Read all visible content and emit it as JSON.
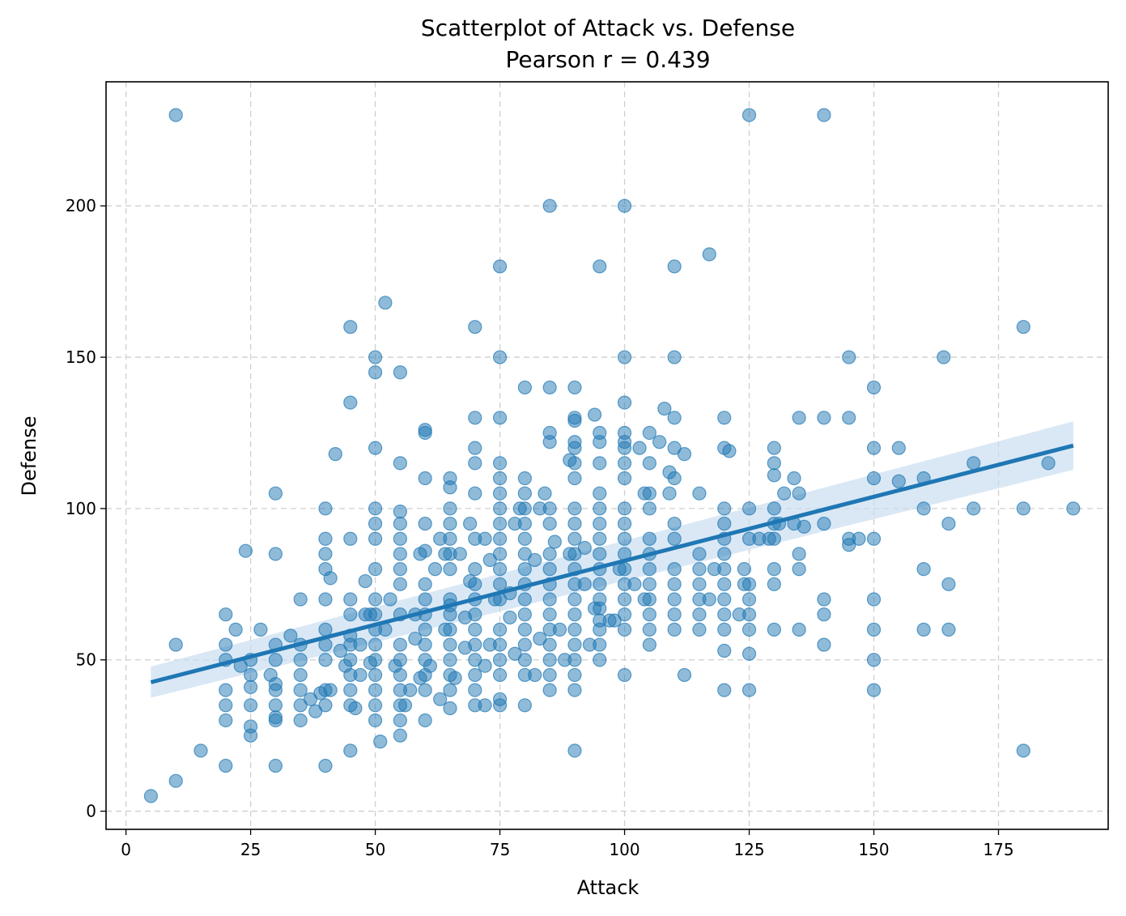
{
  "chart_data": {
    "type": "scatter",
    "title": "Scatterplot of Attack vs. Defense",
    "subtitle": "Pearson r = 0.439",
    "xlabel": "Attack",
    "ylabel": "Defense",
    "xlim": [
      -4,
      197
    ],
    "ylim": [
      -6,
      241
    ],
    "xticks": [
      0,
      25,
      50,
      75,
      100,
      125,
      150,
      175
    ],
    "yticks": [
      0,
      50,
      100,
      150,
      200
    ],
    "grid": true,
    "colors": {
      "point": "#1f77b4",
      "line": "#1f77b4",
      "band": "#c6dbef"
    },
    "regression": {
      "x": [
        5,
        190
      ],
      "y": [
        42.6,
        120.8
      ],
      "ci_low": [
        37.5,
        112.8
      ],
      "ci_high": [
        47.8,
        128.8
      ]
    },
    "points": [
      [
        5,
        5
      ],
      [
        10,
        10
      ],
      [
        10,
        230
      ],
      [
        10,
        55
      ],
      [
        15,
        20
      ],
      [
        20,
        15
      ],
      [
        20,
        30
      ],
      [
        20,
        35
      ],
      [
        20,
        40
      ],
      [
        20,
        50
      ],
      [
        20,
        55
      ],
      [
        20,
        65
      ],
      [
        22,
        60
      ],
      [
        23,
        48
      ],
      [
        24,
        86
      ],
      [
        25,
        25
      ],
      [
        25,
        28
      ],
      [
        25,
        35
      ],
      [
        25,
        41
      ],
      [
        25,
        45
      ],
      [
        25,
        50
      ],
      [
        27,
        60
      ],
      [
        29,
        45
      ],
      [
        30,
        15
      ],
      [
        30,
        30
      ],
      [
        30,
        31
      ],
      [
        30,
        35
      ],
      [
        30,
        40
      ],
      [
        30,
        42
      ],
      [
        30,
        50
      ],
      [
        30,
        55
      ],
      [
        30,
        85
      ],
      [
        30,
        105
      ],
      [
        33,
        58
      ],
      [
        35,
        30
      ],
      [
        35,
        35
      ],
      [
        35,
        40
      ],
      [
        35,
        45
      ],
      [
        35,
        50
      ],
      [
        35,
        55
      ],
      [
        35,
        70
      ],
      [
        37,
        37
      ],
      [
        38,
        33
      ],
      [
        39,
        39
      ],
      [
        40,
        15
      ],
      [
        40,
        35
      ],
      [
        40,
        40
      ],
      [
        40,
        50
      ],
      [
        40,
        55
      ],
      [
        40,
        60
      ],
      [
        40,
        70
      ],
      [
        40,
        80
      ],
      [
        40,
        85
      ],
      [
        40,
        90
      ],
      [
        40,
        100
      ],
      [
        41,
        40
      ],
      [
        41,
        77
      ],
      [
        42,
        118
      ],
      [
        43,
        53
      ],
      [
        44,
        48
      ],
      [
        45,
        20
      ],
      [
        45,
        35
      ],
      [
        45,
        40
      ],
      [
        45,
        45
      ],
      [
        45,
        50
      ],
      [
        45,
        55
      ],
      [
        45,
        58
      ],
      [
        45,
        65
      ],
      [
        45,
        70
      ],
      [
        45,
        90
      ],
      [
        45,
        135
      ],
      [
        45,
        160
      ],
      [
        46,
        34
      ],
      [
        47,
        45
      ],
      [
        47,
        55
      ],
      [
        48,
        65
      ],
      [
        48,
        76
      ],
      [
        49,
        49
      ],
      [
        49,
        65
      ],
      [
        50,
        30
      ],
      [
        50,
        35
      ],
      [
        50,
        40
      ],
      [
        50,
        45
      ],
      [
        50,
        50
      ],
      [
        50,
        55
      ],
      [
        50,
        60
      ],
      [
        50,
        65
      ],
      [
        50,
        70
      ],
      [
        50,
        80
      ],
      [
        50,
        90
      ],
      [
        50,
        95
      ],
      [
        50,
        100
      ],
      [
        50,
        120
      ],
      [
        50,
        145
      ],
      [
        50,
        150
      ],
      [
        51,
        23
      ],
      [
        52,
        168
      ],
      [
        52,
        60
      ],
      [
        53,
        70
      ],
      [
        54,
        48
      ],
      [
        55,
        25
      ],
      [
        55,
        30
      ],
      [
        55,
        35
      ],
      [
        55,
        40
      ],
      [
        55,
        45
      ],
      [
        55,
        50
      ],
      [
        55,
        55
      ],
      [
        55,
        65
      ],
      [
        55,
        75
      ],
      [
        55,
        80
      ],
      [
        55,
        85
      ],
      [
        55,
        90
      ],
      [
        55,
        95
      ],
      [
        55,
        99
      ],
      [
        55,
        115
      ],
      [
        55,
        145
      ],
      [
        56,
        35
      ],
      [
        57,
        40
      ],
      [
        58,
        57
      ],
      [
        58,
        65
      ],
      [
        59,
        85
      ],
      [
        59,
        44
      ],
      [
        60,
        30
      ],
      [
        60,
        40
      ],
      [
        60,
        45
      ],
      [
        60,
        50
      ],
      [
        60,
        55
      ],
      [
        60,
        60
      ],
      [
        60,
        65
      ],
      [
        60,
        70
      ],
      [
        60,
        75
      ],
      [
        60,
        86
      ],
      [
        60,
        95
      ],
      [
        60,
        110
      ],
      [
        60,
        125
      ],
      [
        60,
        126
      ],
      [
        61,
        48
      ],
      [
        62,
        80
      ],
      [
        63,
        37
      ],
      [
        63,
        90
      ],
      [
        64,
        60
      ],
      [
        64,
        85
      ],
      [
        65,
        34
      ],
      [
        65,
        40
      ],
      [
        65,
        45
      ],
      [
        65,
        50
      ],
      [
        65,
        55
      ],
      [
        65,
        60
      ],
      [
        65,
        65
      ],
      [
        65,
        68
      ],
      [
        65,
        70
      ],
      [
        65,
        80
      ],
      [
        65,
        85
      ],
      [
        65,
        90
      ],
      [
        65,
        95
      ],
      [
        65,
        100
      ],
      [
        65,
        107
      ],
      [
        65,
        110
      ],
      [
        66,
        44
      ],
      [
        67,
        85
      ],
      [
        68,
        64
      ],
      [
        68,
        54
      ],
      [
        69,
        95
      ],
      [
        69,
        76
      ],
      [
        70,
        35
      ],
      [
        70,
        40
      ],
      [
        70,
        45
      ],
      [
        70,
        50
      ],
      [
        70,
        55
      ],
      [
        70,
        60
      ],
      [
        70,
        65
      ],
      [
        70,
        70
      ],
      [
        70,
        75
      ],
      [
        70,
        80
      ],
      [
        70,
        90
      ],
      [
        70,
        105
      ],
      [
        70,
        115
      ],
      [
        70,
        120
      ],
      [
        70,
        130
      ],
      [
        70,
        160
      ],
      [
        72,
        35
      ],
      [
        72,
        48
      ],
      [
        72,
        90
      ],
      [
        73,
        55
      ],
      [
        73,
        83
      ],
      [
        74,
        70
      ],
      [
        75,
        35
      ],
      [
        75,
        37
      ],
      [
        75,
        45
      ],
      [
        75,
        50
      ],
      [
        75,
        55
      ],
      [
        75,
        60
      ],
      [
        75,
        70
      ],
      [
        75,
        75
      ],
      [
        75,
        80
      ],
      [
        75,
        85
      ],
      [
        75,
        90
      ],
      [
        75,
        95
      ],
      [
        75,
        100
      ],
      [
        75,
        105
      ],
      [
        75,
        110
      ],
      [
        75,
        115
      ],
      [
        75,
        130
      ],
      [
        75,
        150
      ],
      [
        75,
        180
      ],
      [
        77,
        64
      ],
      [
        77,
        72
      ],
      [
        78,
        52
      ],
      [
        78,
        95
      ],
      [
        79,
        100
      ],
      [
        80,
        35
      ],
      [
        80,
        45
      ],
      [
        80,
        50
      ],
      [
        80,
        55
      ],
      [
        80,
        60
      ],
      [
        80,
        65
      ],
      [
        80,
        70
      ],
      [
        80,
        75
      ],
      [
        80,
        80
      ],
      [
        80,
        85
      ],
      [
        80,
        90
      ],
      [
        80,
        95
      ],
      [
        80,
        100
      ],
      [
        80,
        105
      ],
      [
        80,
        110
      ],
      [
        80,
        140
      ],
      [
        82,
        45
      ],
      [
        82,
        83
      ],
      [
        83,
        57
      ],
      [
        83,
        100
      ],
      [
        84,
        105
      ],
      [
        85,
        40
      ],
      [
        85,
        45
      ],
      [
        85,
        50
      ],
      [
        85,
        55
      ],
      [
        85,
        60
      ],
      [
        85,
        65
      ],
      [
        85,
        70
      ],
      [
        85,
        75
      ],
      [
        85,
        80
      ],
      [
        85,
        85
      ],
      [
        85,
        95
      ],
      [
        85,
        100
      ],
      [
        85,
        122
      ],
      [
        85,
        125
      ],
      [
        85,
        140
      ],
      [
        85,
        200
      ],
      [
        86,
        89
      ],
      [
        87,
        60
      ],
      [
        88,
        50
      ],
      [
        89,
        116
      ],
      [
        89,
        85
      ],
      [
        90,
        20
      ],
      [
        90,
        40
      ],
      [
        90,
        45
      ],
      [
        90,
        50
      ],
      [
        90,
        55
      ],
      [
        90,
        60
      ],
      [
        90,
        65
      ],
      [
        90,
        70
      ],
      [
        90,
        75
      ],
      [
        90,
        80
      ],
      [
        90,
        85
      ],
      [
        90,
        90
      ],
      [
        90,
        95
      ],
      [
        90,
        100
      ],
      [
        90,
        110
      ],
      [
        90,
        115
      ],
      [
        90,
        120
      ],
      [
        90,
        122
      ],
      [
        90,
        129
      ],
      [
        90,
        130
      ],
      [
        90,
        140
      ],
      [
        92,
        75
      ],
      [
        92,
        87
      ],
      [
        93,
        55
      ],
      [
        94,
        131
      ],
      [
        94,
        67
      ],
      [
        95,
        50
      ],
      [
        95,
        55
      ],
      [
        95,
        60
      ],
      [
        95,
        63
      ],
      [
        95,
        67
      ],
      [
        95,
        70
      ],
      [
        95,
        75
      ],
      [
        95,
        80
      ],
      [
        95,
        85
      ],
      [
        95,
        90
      ],
      [
        95,
        95
      ],
      [
        95,
        100
      ],
      [
        95,
        105
      ],
      [
        95,
        115
      ],
      [
        95,
        122
      ],
      [
        95,
        125
      ],
      [
        95,
        180
      ],
      [
        97,
        63
      ],
      [
        98,
        63
      ],
      [
        99,
        80
      ],
      [
        100,
        45
      ],
      [
        100,
        60
      ],
      [
        100,
        65
      ],
      [
        100,
        70
      ],
      [
        100,
        75
      ],
      [
        100,
        80
      ],
      [
        100,
        85
      ],
      [
        100,
        90
      ],
      [
        100,
        95
      ],
      [
        100,
        100
      ],
      [
        100,
        110
      ],
      [
        100,
        115
      ],
      [
        100,
        120
      ],
      [
        100,
        122
      ],
      [
        100,
        125
      ],
      [
        100,
        135
      ],
      [
        100,
        150
      ],
      [
        100,
        200
      ],
      [
        102,
        75
      ],
      [
        103,
        120
      ],
      [
        104,
        70
      ],
      [
        104,
        105
      ],
      [
        105,
        55
      ],
      [
        105,
        60
      ],
      [
        105,
        65
      ],
      [
        105,
        70
      ],
      [
        105,
        75
      ],
      [
        105,
        80
      ],
      [
        105,
        85
      ],
      [
        105,
        90
      ],
      [
        105,
        100
      ],
      [
        105,
        105
      ],
      [
        105,
        115
      ],
      [
        105,
        125
      ],
      [
        107,
        122
      ],
      [
        108,
        133
      ],
      [
        109,
        112
      ],
      [
        109,
        105
      ],
      [
        110,
        60
      ],
      [
        110,
        65
      ],
      [
        110,
        70
      ],
      [
        110,
        75
      ],
      [
        110,
        80
      ],
      [
        110,
        90
      ],
      [
        110,
        95
      ],
      [
        110,
        110
      ],
      [
        110,
        120
      ],
      [
        110,
        130
      ],
      [
        110,
        150
      ],
      [
        110,
        180
      ],
      [
        112,
        45
      ],
      [
        112,
        118
      ],
      [
        115,
        60
      ],
      [
        115,
        65
      ],
      [
        115,
        70
      ],
      [
        115,
        75
      ],
      [
        115,
        80
      ],
      [
        115,
        85
      ],
      [
        115,
        105
      ],
      [
        117,
        70
      ],
      [
        117,
        184
      ],
      [
        118,
        80
      ],
      [
        120,
        40
      ],
      [
        120,
        53
      ],
      [
        120,
        60
      ],
      [
        120,
        65
      ],
      [
        120,
        70
      ],
      [
        120,
        75
      ],
      [
        120,
        80
      ],
      [
        120,
        85
      ],
      [
        120,
        90
      ],
      [
        120,
        95
      ],
      [
        120,
        100
      ],
      [
        120,
        120
      ],
      [
        120,
        130
      ],
      [
        121,
        119
      ],
      [
        123,
        65
      ],
      [
        124,
        75
      ],
      [
        124,
        80
      ],
      [
        125,
        40
      ],
      [
        125,
        52
      ],
      [
        125,
        60
      ],
      [
        125,
        65
      ],
      [
        125,
        70
      ],
      [
        125,
        75
      ],
      [
        125,
        90
      ],
      [
        125,
        100
      ],
      [
        125,
        230
      ],
      [
        127,
        90
      ],
      [
        129,
        90
      ],
      [
        130,
        60
      ],
      [
        130,
        75
      ],
      [
        130,
        80
      ],
      [
        130,
        90
      ],
      [
        130,
        95
      ],
      [
        130,
        100
      ],
      [
        130,
        111
      ],
      [
        130,
        115
      ],
      [
        130,
        120
      ],
      [
        131,
        95
      ],
      [
        132,
        105
      ],
      [
        134,
        95
      ],
      [
        134,
        110
      ],
      [
        135,
        60
      ],
      [
        135,
        80
      ],
      [
        135,
        85
      ],
      [
        135,
        105
      ],
      [
        135,
        130
      ],
      [
        136,
        94
      ],
      [
        140,
        55
      ],
      [
        140,
        65
      ],
      [
        140,
        70
      ],
      [
        140,
        95
      ],
      [
        140,
        130
      ],
      [
        140,
        230
      ],
      [
        145,
        88
      ],
      [
        145,
        90
      ],
      [
        145,
        130
      ],
      [
        145,
        150
      ],
      [
        147,
        90
      ],
      [
        150,
        40
      ],
      [
        150,
        50
      ],
      [
        150,
        60
      ],
      [
        150,
        70
      ],
      [
        150,
        90
      ],
      [
        150,
        110
      ],
      [
        150,
        120
      ],
      [
        150,
        140
      ],
      [
        155,
        109
      ],
      [
        155,
        120
      ],
      [
        160,
        60
      ],
      [
        160,
        80
      ],
      [
        160,
        100
      ],
      [
        160,
        110
      ],
      [
        164,
        150
      ],
      [
        165,
        60
      ],
      [
        165,
        75
      ],
      [
        165,
        95
      ],
      [
        170,
        100
      ],
      [
        170,
        115
      ],
      [
        180,
        20
      ],
      [
        180,
        100
      ],
      [
        180,
        160
      ],
      [
        185,
        115
      ],
      [
        190,
        100
      ]
    ]
  }
}
